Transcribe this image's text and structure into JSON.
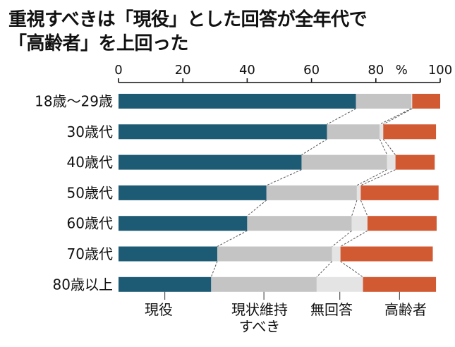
{
  "chart_data": {
    "type": "bar",
    "orientation": "horizontal",
    "stacked": true,
    "title_lines": [
      "重視すべきは「現役」とした回答が全年代で",
      "「高齢者」を上回った"
    ],
    "x_ticks": [
      "0",
      "20",
      "40",
      "60",
      "80",
      "100"
    ],
    "percent_symbol": "%",
    "xlim": [
      0,
      100
    ],
    "categories": [
      "18歳〜29歳",
      "30歳代",
      "40歳代",
      "50歳代",
      "60歳代",
      "70歳代",
      "80歳以上"
    ],
    "series": [
      {
        "name": "現役",
        "color": "#1d5b74",
        "values": [
          73.8,
          64.8,
          56.9,
          46.0,
          40.0,
          30.7,
          28.8
        ]
      },
      {
        "name": "現状維持すべき",
        "color": "#c4c4c4",
        "values": [
          17.2,
          16.4,
          26.6,
          28.1,
          32.5,
          35.7,
          32.8
        ]
      },
      {
        "name": "無回答",
        "color": "#e4e4e4",
        "values": [
          0.3,
          1.1,
          2.6,
          1.2,
          4.9,
          2.6,
          14.4
        ]
      },
      {
        "name": "高齢者",
        "color": "#d25a33",
        "values": [
          8.7,
          16.4,
          12.2,
          24.2,
          21.5,
          28.7,
          22.7
        ]
      }
    ],
    "legend": {
      "position": "bottom",
      "items": [
        {
          "lines": [
            "現役"
          ]
        },
        {
          "lines": [
            "現状維持",
            "すべき"
          ]
        },
        {
          "lines": [
            "無回答"
          ]
        },
        {
          "lines": [
            "高齢者"
          ]
        }
      ]
    },
    "connector_lines": "dashed",
    "grid": false
  }
}
